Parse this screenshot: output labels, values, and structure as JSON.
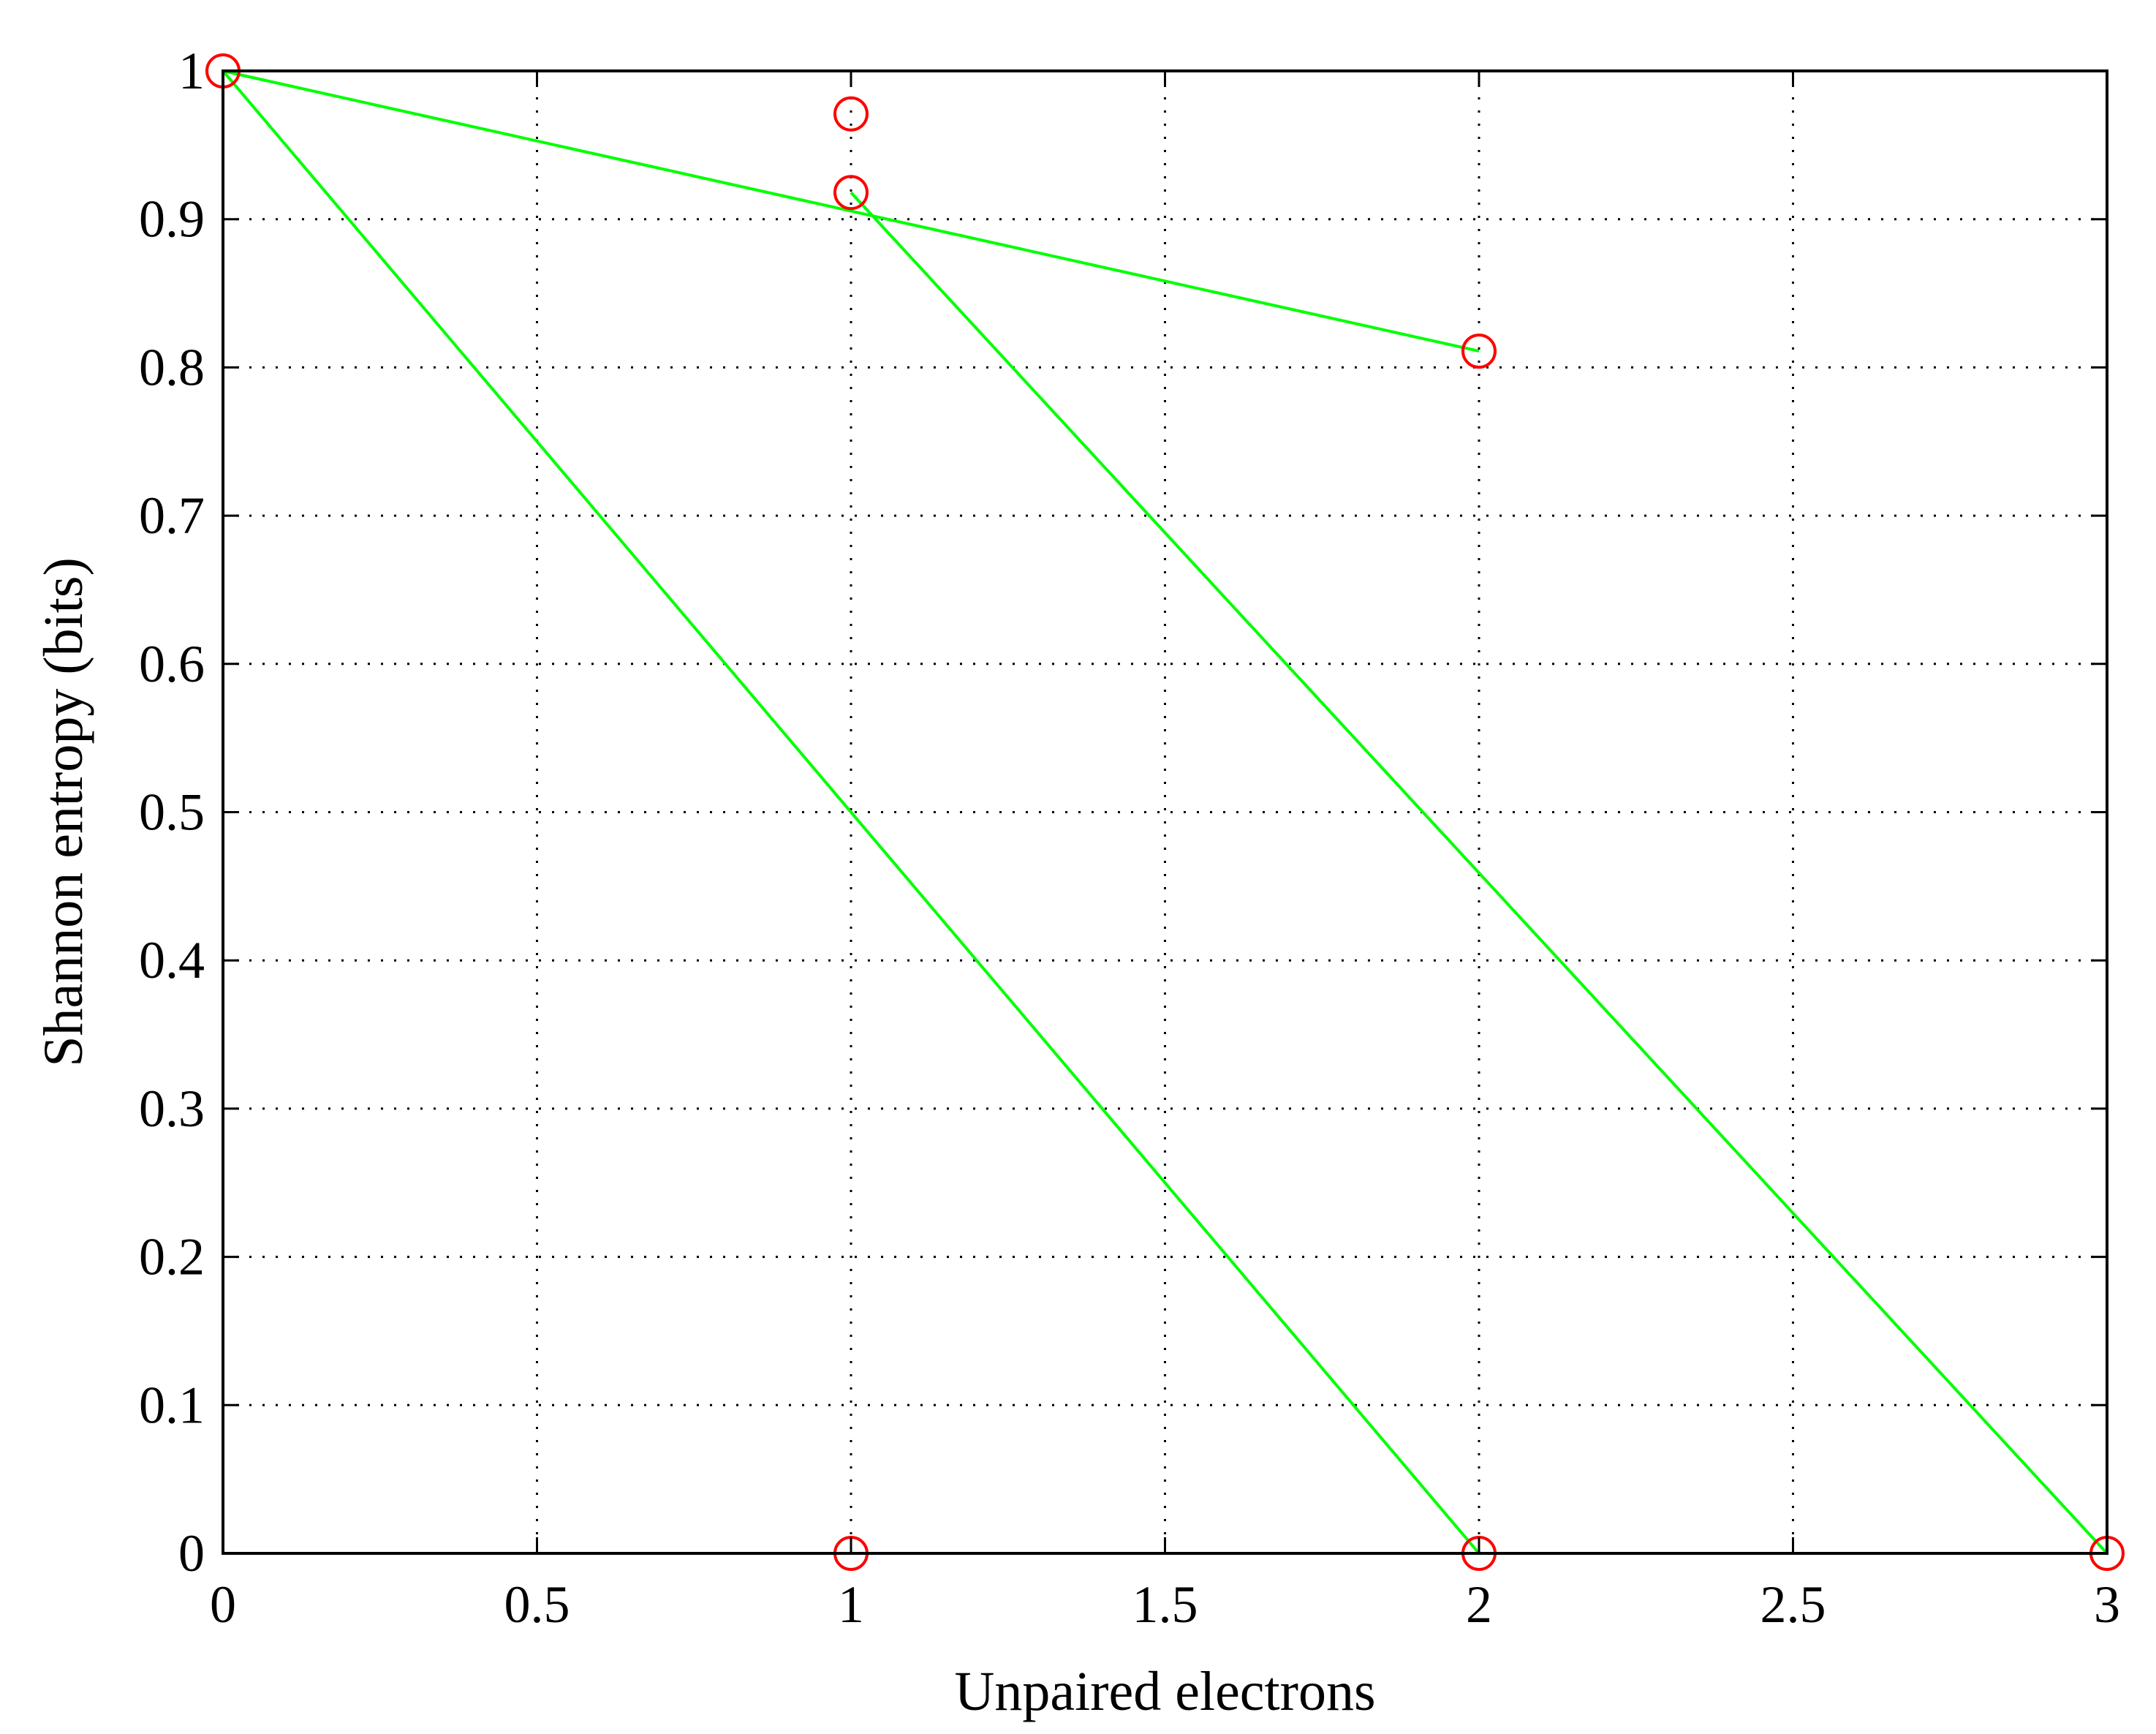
{
  "chart_data": {
    "type": "scatter",
    "title": "",
    "xlabel": "Unpaired electrons",
    "ylabel": "Shannon entropy (bits)",
    "xlim": [
      0,
      3
    ],
    "ylim": [
      0,
      1
    ],
    "x_ticks": [
      0,
      0.5,
      1,
      1.5,
      2,
      2.5,
      3
    ],
    "x_tick_labels": [
      "0",
      "0.5",
      "1",
      "1.5",
      "2",
      "2.5",
      "3"
    ],
    "y_ticks": [
      0,
      0.1,
      0.2,
      0.3,
      0.4,
      0.5,
      0.6,
      0.7,
      0.8,
      0.9,
      1
    ],
    "y_tick_labels": [
      "0",
      "0.1",
      "0.2",
      "0.3",
      "0.4",
      "0.5",
      "0.6",
      "0.7",
      "0.8",
      "0.9",
      "1"
    ],
    "grid": true,
    "points": [
      {
        "x": 0,
        "y": 1.0
      },
      {
        "x": 1,
        "y": 0.971
      },
      {
        "x": 1,
        "y": 0.918
      },
      {
        "x": 1,
        "y": 0.0
      },
      {
        "x": 2,
        "y": 0.811
      },
      {
        "x": 2,
        "y": 0.0
      },
      {
        "x": 3,
        "y": 0.0
      }
    ],
    "lines": [
      {
        "x": [
          0,
          2
        ],
        "y": [
          1.0,
          0.811
        ]
      },
      {
        "x": [
          0,
          2
        ],
        "y": [
          1.0,
          0.0
        ]
      },
      {
        "x": [
          1,
          3
        ],
        "y": [
          0.918,
          0.0
        ]
      }
    ],
    "colors": {
      "markers": "#ff0000",
      "lines": "#00ff00"
    }
  }
}
